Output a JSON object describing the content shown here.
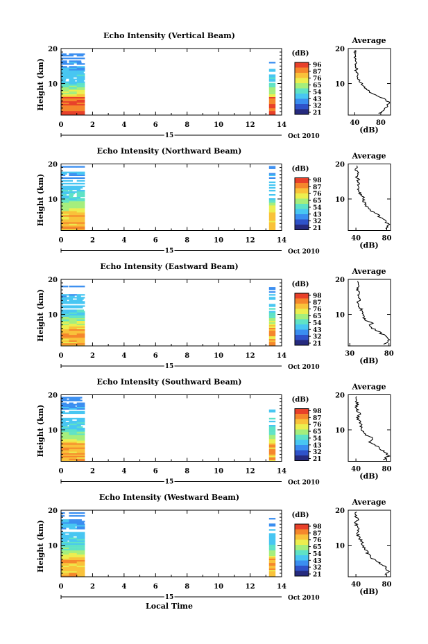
{
  "chart_data": {
    "type": "heatmap",
    "xlabel": "Local Time",
    "date_label": "Oct 2010",
    "day_label": "15",
    "x_ticks": [
      0,
      2,
      4,
      6,
      8,
      10,
      12,
      14
    ],
    "xlim": [
      0,
      14
    ],
    "y_ticks": [
      10,
      20
    ],
    "ylim": [
      1,
      20
    ],
    "ylabel": "Height (km)",
    "colorbar_unit": "(dB)",
    "data_time_windows": [
      [
        0.0,
        1.5
      ],
      [
        13.2,
        13.6
      ]
    ],
    "colormap": [
      "#262a7e",
      "#2f52c9",
      "#3a8ef0",
      "#48c6f2",
      "#5fe2c6",
      "#a5ee7c",
      "#ecee4f",
      "#f9c23a",
      "#f5872c",
      "#e8412a"
    ],
    "profile": {
      "title": "Average",
      "xlabel": "(dB)",
      "y_ticks": [
        10,
        20
      ]
    },
    "panels": [
      {
        "title": "Echo Intensity (Vertical Beam)",
        "colorbar_ticks": [
          "96",
          "87",
          "76",
          "65",
          "54",
          "43",
          "32",
          "21"
        ],
        "profile_x_ticks": [
          "40",
          "80"
        ],
        "profile_xlim": [
          30,
          95
        ],
        "top_km": 18.5,
        "avg_profile": [
          [
            1.5,
            78
          ],
          [
            2.5,
            86
          ],
          [
            3.5,
            90
          ],
          [
            4.5,
            93
          ],
          [
            5.5,
            86
          ],
          [
            6.5,
            76
          ],
          [
            7.5,
            64
          ],
          [
            8.5,
            58
          ],
          [
            9.5,
            52
          ],
          [
            10.5,
            48
          ],
          [
            11.5,
            46
          ],
          [
            12.5,
            44
          ],
          [
            13.5,
            42
          ],
          [
            14.5,
            43
          ],
          [
            15.5,
            41
          ],
          [
            16.5,
            43
          ],
          [
            17.5,
            40
          ],
          [
            18.5,
            42
          ],
          [
            19.5,
            40
          ]
        ]
      },
      {
        "title": "Echo Intensity (Northward Beam)",
        "colorbar_ticks": [
          "98",
          "87",
          "76",
          "65",
          "54",
          "43",
          "32",
          "21"
        ],
        "profile_x_ticks": [
          "40",
          "80"
        ],
        "profile_xlim": [
          30,
          85
        ],
        "top_km": 19.0,
        "avg_profile": [
          [
            1.5,
            80
          ],
          [
            2.5,
            83
          ],
          [
            3.5,
            79
          ],
          [
            4.5,
            73
          ],
          [
            5.5,
            68
          ],
          [
            6.5,
            60
          ],
          [
            7.5,
            56
          ],
          [
            8.5,
            52
          ],
          [
            9.5,
            50
          ],
          [
            10.5,
            49
          ],
          [
            11.5,
            46
          ],
          [
            12.5,
            44
          ],
          [
            13.5,
            42
          ],
          [
            14.5,
            44
          ],
          [
            15.5,
            43
          ],
          [
            16.5,
            41
          ],
          [
            17.5,
            42
          ],
          [
            18.5,
            40
          ],
          [
            19.5,
            41
          ]
        ]
      },
      {
        "title": "Echo Intensity (Eastward Beam)",
        "colorbar_ticks": [
          "98",
          "87",
          "76",
          "65",
          "54",
          "43",
          "32",
          "21"
        ],
        "profile_x_ticks": [
          "30",
          "80"
        ],
        "profile_xlim": [
          28,
          82
        ],
        "top_km": 19.0,
        "avg_profile": [
          [
            1.5,
            74
          ],
          [
            2.5,
            80
          ],
          [
            3.5,
            78
          ],
          [
            4.5,
            70
          ],
          [
            5.5,
            64
          ],
          [
            6.5,
            55
          ],
          [
            7.5,
            58
          ],
          [
            8.5,
            50
          ],
          [
            9.5,
            47
          ],
          [
            10.5,
            46
          ],
          [
            11.5,
            44
          ],
          [
            12.5,
            42
          ],
          [
            13.5,
            41
          ],
          [
            14.5,
            44
          ],
          [
            15.5,
            40
          ],
          [
            16.5,
            42
          ],
          [
            17.5,
            39
          ],
          [
            18.5,
            41
          ],
          [
            19.5,
            40
          ]
        ]
      },
      {
        "title": "Echo Intensity (Southward Beam)",
        "colorbar_ticks": [
          "98",
          "87",
          "76",
          "65",
          "54",
          "43",
          "32",
          "21"
        ],
        "profile_x_ticks": [
          "40",
          "80"
        ],
        "profile_xlim": [
          30,
          85
        ],
        "top_km": 19.5,
        "avg_profile": [
          [
            1.5,
            76
          ],
          [
            2.5,
            82
          ],
          [
            3.5,
            79
          ],
          [
            4.5,
            72
          ],
          [
            5.5,
            66
          ],
          [
            6.5,
            58
          ],
          [
            7.5,
            62
          ],
          [
            8.5,
            54
          ],
          [
            9.5,
            50
          ],
          [
            10.5,
            47
          ],
          [
            11.5,
            46
          ],
          [
            12.5,
            44
          ],
          [
            13.5,
            42
          ],
          [
            14.5,
            45
          ],
          [
            15.5,
            42
          ],
          [
            16.5,
            40
          ],
          [
            17.5,
            42
          ],
          [
            18.5,
            40
          ],
          [
            19.5,
            41
          ]
        ]
      },
      {
        "title": "Echo Intensity (Westward Beam)",
        "colorbar_ticks": [
          "98",
          "87",
          "76",
          "65",
          "54",
          "43",
          "32",
          "21"
        ],
        "profile_x_ticks": [
          "40",
          "80"
        ],
        "profile_xlim": [
          30,
          85
        ],
        "top_km": 19.5,
        "avg_profile": [
          [
            1.5,
            78
          ],
          [
            2.5,
            82
          ],
          [
            3.5,
            80
          ],
          [
            4.5,
            74
          ],
          [
            5.5,
            67
          ],
          [
            6.5,
            59
          ],
          [
            7.5,
            56
          ],
          [
            8.5,
            53
          ],
          [
            9.5,
            50
          ],
          [
            10.5,
            48
          ],
          [
            11.5,
            46
          ],
          [
            12.5,
            44
          ],
          [
            13.5,
            42
          ],
          [
            14.5,
            44
          ],
          [
            15.5,
            41
          ],
          [
            16.5,
            40
          ],
          [
            17.5,
            42
          ],
          [
            18.5,
            39
          ],
          [
            19.5,
            41
          ]
        ]
      }
    ]
  }
}
